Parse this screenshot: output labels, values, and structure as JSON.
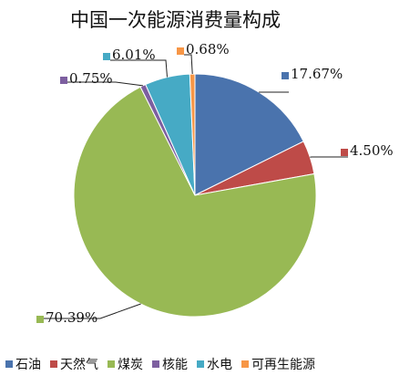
{
  "chart_data": {
    "type": "pie",
    "title": "中国一次能源消费量构成",
    "categories": [
      "石油",
      "天然气",
      "煤炭",
      "核能",
      "水电",
      "可再生能源"
    ],
    "values": [
      17.67,
      4.5,
      70.39,
      0.75,
      6.01,
      0.68
    ],
    "data_labels": [
      "17.67%",
      "4.50%",
      "70.39%",
      "0.75%",
      "6.01%",
      "0.68%"
    ],
    "colors": [
      "#4a73ad",
      "#be4b48",
      "#98b954",
      "#7d5fa0",
      "#46aac5",
      "#f79646"
    ],
    "legend_placement": "bottom"
  }
}
